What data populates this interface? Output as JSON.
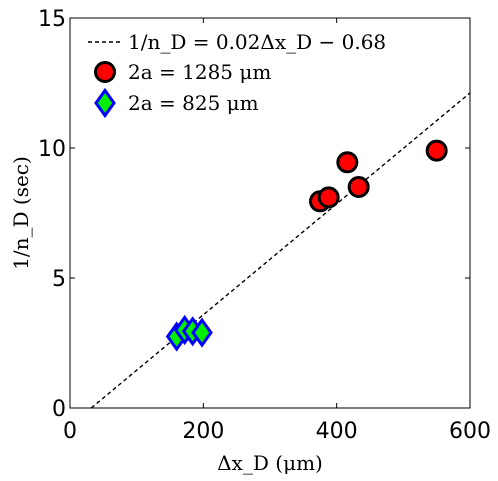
{
  "chart_data": {
    "type": "scatter",
    "xlabel": "Δx_D (μm)",
    "ylabel": "1/n_D (sec)",
    "xlim": [
      0,
      600
    ],
    "ylim": [
      0,
      15
    ],
    "xticks": [
      0,
      200,
      400,
      600
    ],
    "yticks": [
      0,
      5,
      10,
      15
    ],
    "xtick_labels": [
      "0",
      "200",
      "400",
      "600"
    ],
    "ytick_labels": [
      "0",
      "5",
      "10",
      "15"
    ],
    "grid": false,
    "legend_position": "top-left",
    "fit_line": {
      "label": "1/n_D = 0.02Δx_D − 0.68",
      "slope": 0.02133,
      "intercept": -0.68,
      "x_range": [
        32,
        600
      ],
      "style": "dashed",
      "color": "#000000"
    },
    "series": [
      {
        "name": "2a = 1285 μm",
        "marker": "circle",
        "fill": "#ff0000",
        "edge": "#000000",
        "points": [
          [
            375,
            7.95
          ],
          [
            388,
            8.1
          ],
          [
            416,
            9.45
          ],
          [
            433,
            8.5
          ],
          [
            550,
            9.9
          ]
        ]
      },
      {
        "name": "2a = 825 μm",
        "marker": "diamond",
        "fill": "#00ee00",
        "edge": "#0000ff",
        "points": [
          [
            160,
            2.75
          ],
          [
            172,
            3.0
          ],
          [
            184,
            2.95
          ],
          [
            198,
            2.9
          ]
        ]
      }
    ]
  }
}
